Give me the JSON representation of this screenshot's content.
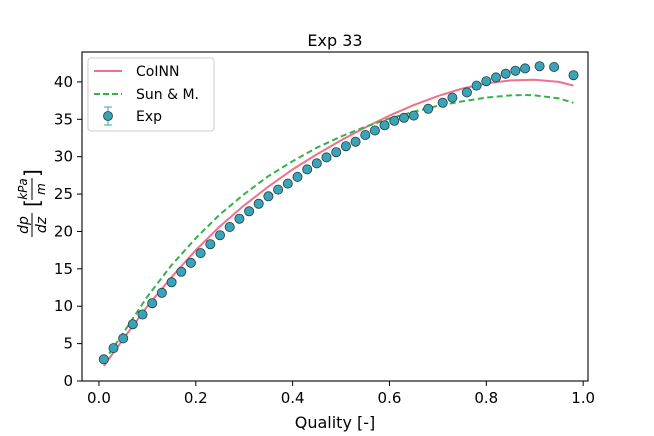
{
  "chart_data": {
    "type": "scatter",
    "title": "Exp 33",
    "xlabel": "Quality [-]",
    "ylabel": {
      "main": "dp",
      "denominator": "dz",
      "unit_numerator": "kPa",
      "unit_denominator": "m"
    },
    "xlim": [
      -0.035,
      1.01
    ],
    "ylim": [
      0,
      44
    ],
    "xticks": [
      0.0,
      0.2,
      0.4,
      0.6,
      0.8,
      1.0
    ],
    "xtick_labels": [
      "0.0",
      "0.2",
      "0.4",
      "0.6",
      "0.8",
      "1.0"
    ],
    "yticks": [
      0,
      5,
      10,
      15,
      20,
      25,
      30,
      35,
      40
    ],
    "ytick_labels": [
      "0",
      "5",
      "10",
      "15",
      "20",
      "25",
      "30",
      "35",
      "40"
    ],
    "legend": {
      "placement": "upper-left",
      "entries": [
        "CoINN",
        "Sun & M.",
        "Exp"
      ]
    },
    "series": [
      {
        "name": "CoINN",
        "kind": "line",
        "style": "solid",
        "color": "#f0718a",
        "x": [
          0.01,
          0.05,
          0.1,
          0.15,
          0.2,
          0.25,
          0.3,
          0.35,
          0.4,
          0.45,
          0.5,
          0.55,
          0.6,
          0.65,
          0.7,
          0.75,
          0.8,
          0.85,
          0.9,
          0.95,
          0.98
        ],
        "y": [
          2.0,
          5.6,
          10.0,
          13.9,
          17.5,
          20.7,
          23.5,
          26.0,
          28.3,
          30.3,
          32.2,
          33.9,
          35.5,
          36.9,
          38.1,
          39.1,
          39.8,
          40.2,
          40.3,
          40.0,
          39.5
        ]
      },
      {
        "name": "Sun & M.",
        "kind": "line",
        "style": "dashed",
        "color": "#33b24a",
        "x": [
          0.01,
          0.05,
          0.1,
          0.15,
          0.2,
          0.25,
          0.3,
          0.35,
          0.4,
          0.45,
          0.5,
          0.55,
          0.6,
          0.65,
          0.7,
          0.75,
          0.8,
          0.85,
          0.88,
          0.9,
          0.95,
          0.98
        ],
        "y": [
          2.6,
          6.4,
          11.3,
          15.5,
          19.1,
          22.3,
          25.0,
          27.4,
          29.4,
          31.2,
          32.7,
          34.0,
          35.1,
          36.0,
          36.8,
          37.4,
          37.9,
          38.2,
          38.25,
          38.2,
          37.8,
          37.2
        ]
      },
      {
        "name": "Exp",
        "kind": "scatter",
        "color": "#3aa3b5",
        "edge_color": "#1f3f47",
        "x": [
          0.01,
          0.03,
          0.05,
          0.07,
          0.09,
          0.11,
          0.13,
          0.15,
          0.17,
          0.19,
          0.21,
          0.23,
          0.25,
          0.27,
          0.29,
          0.31,
          0.33,
          0.35,
          0.37,
          0.39,
          0.41,
          0.43,
          0.45,
          0.47,
          0.49,
          0.51,
          0.53,
          0.55,
          0.57,
          0.59,
          0.61,
          0.63,
          0.65,
          0.68,
          0.71,
          0.73,
          0.76,
          0.78,
          0.8,
          0.82,
          0.84,
          0.86,
          0.88,
          0.91,
          0.94,
          0.98
        ],
        "y": [
          2.9,
          4.4,
          5.7,
          7.6,
          8.9,
          10.4,
          11.8,
          13.2,
          14.6,
          15.8,
          17.1,
          18.3,
          19.5,
          20.6,
          21.7,
          22.7,
          23.7,
          24.7,
          25.6,
          26.4,
          27.3,
          28.3,
          29.1,
          29.9,
          30.6,
          31.4,
          32.0,
          32.9,
          33.5,
          34.2,
          34.8,
          35.2,
          35.5,
          36.4,
          37.2,
          37.9,
          38.6,
          39.5,
          40.1,
          40.6,
          41.1,
          41.5,
          41.8,
          42.1,
          42.0,
          40.9
        ]
      }
    ]
  }
}
